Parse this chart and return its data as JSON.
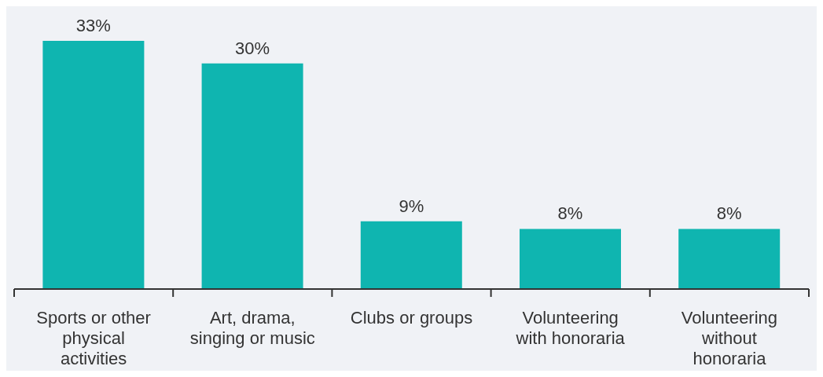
{
  "chart_data": {
    "type": "bar",
    "categories": [
      "Sports or other physical activities",
      "Art, drama, singing or music",
      "Clubs or groups",
      "Volunteering with honoraria",
      "Volunteering without honoraria"
    ],
    "values": [
      33,
      30,
      9,
      8,
      8
    ],
    "color": "#0fb5b0",
    "value_labels": [
      "33%",
      "30%",
      "9%",
      "8%",
      "8%"
    ],
    "grid": false,
    "legend": false
  }
}
